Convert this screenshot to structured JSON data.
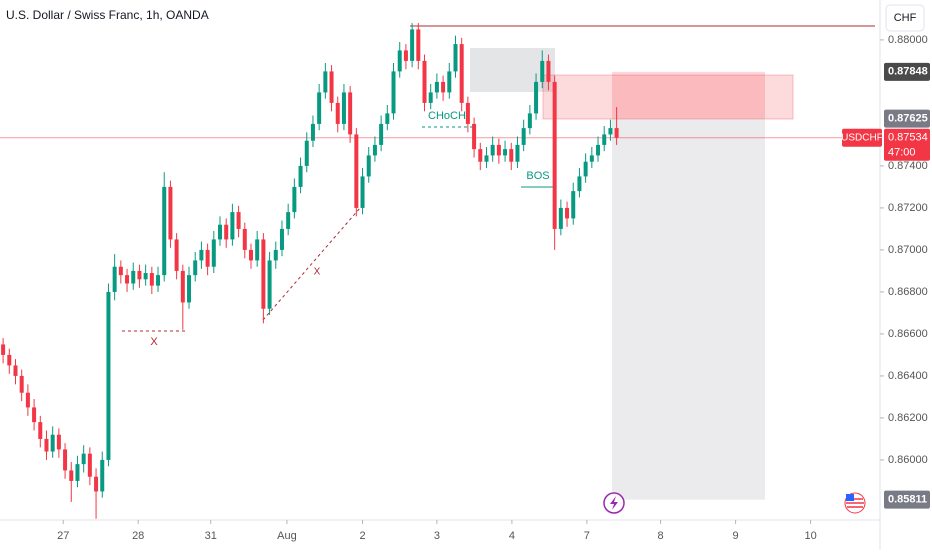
{
  "chart_data": {
    "type": "candlestick",
    "title": "U.S. Dollar / Swiss Franc, 1h, OANDA",
    "currency": "CHF",
    "symbol": "USDCHF",
    "countdown": "47:00",
    "last_price": 0.87534,
    "stop_price": 0.87848,
    "entry_price": 0.87625,
    "target_price": 0.85811,
    "annotations": [
      "CHoCH",
      "BOS",
      "X",
      "X"
    ],
    "up_color": "#089981",
    "down_color": "#f23645",
    "xlim": [
      0,
      142
    ],
    "xticks": [
      {
        "value": 10.2,
        "label": "27"
      },
      {
        "value": 22.3,
        "label": "28"
      },
      {
        "value": 34,
        "label": "31"
      },
      {
        "value": 46.3,
        "label": "Aug"
      },
      {
        "value": 58.5,
        "label": "2"
      },
      {
        "value": 70.5,
        "label": "3"
      },
      {
        "value": 82.6,
        "label": "4"
      },
      {
        "value": 94.7,
        "label": "7"
      },
      {
        "value": 106.6,
        "label": "8"
      },
      {
        "value": 118.7,
        "label": "9"
      },
      {
        "value": 130.8,
        "label": "10"
      }
    ],
    "ylim": [
      0.85714,
      0.8819
    ],
    "yticks": [
      {
        "value": 0.88,
        "label": "0.88000"
      },
      {
        "value": 0.874,
        "label": "0.87400"
      },
      {
        "value": 0.872,
        "label": "0.87200"
      },
      {
        "value": 0.87,
        "label": "0.87000"
      },
      {
        "value": 0.868,
        "label": "0.86800"
      },
      {
        "value": 0.866,
        "label": "0.86600"
      },
      {
        "value": 0.864,
        "label": "0.86400"
      },
      {
        "value": 0.862,
        "label": "0.86200"
      },
      {
        "value": 0.86,
        "label": "0.86000"
      }
    ],
    "candles": [
      [
        0.8655,
        0.8658,
        0.8646,
        0.865
      ],
      [
        0.865,
        0.8653,
        0.8641,
        0.8645
      ],
      [
        0.8645,
        0.8648,
        0.8636,
        0.864
      ],
      [
        0.864,
        0.8643,
        0.8628,
        0.8632
      ],
      [
        0.8632,
        0.8636,
        0.8621,
        0.8625
      ],
      [
        0.8625,
        0.8629,
        0.8614,
        0.8618
      ],
      [
        0.8618,
        0.8621,
        0.8606,
        0.861
      ],
      [
        0.861,
        0.8614,
        0.86,
        0.8604
      ],
      [
        0.8604,
        0.8616,
        0.8601,
        0.8612
      ],
      [
        0.8612,
        0.8615,
        0.8601,
        0.8605
      ],
      [
        0.8605,
        0.8608,
        0.8591,
        0.8595
      ],
      [
        0.8595,
        0.8599,
        0.858,
        0.859
      ],
      [
        0.859,
        0.8602,
        0.8587,
        0.8598
      ],
      [
        0.8598,
        0.8607,
        0.8594,
        0.8603
      ],
      [
        0.8603,
        0.8606,
        0.8588,
        0.8592
      ],
      [
        0.8592,
        0.8596,
        0.8572,
        0.8585
      ],
      [
        0.8585,
        0.8604,
        0.8582,
        0.86
      ],
      [
        0.86,
        0.8684,
        0.8597,
        0.868
      ],
      [
        0.868,
        0.8698,
        0.8676,
        0.8692
      ],
      [
        0.8692,
        0.8695,
        0.8684,
        0.8688
      ],
      [
        0.8688,
        0.8691,
        0.868,
        0.8684
      ],
      [
        0.8684,
        0.8694,
        0.8681,
        0.869
      ],
      [
        0.869,
        0.8693,
        0.8682,
        0.8686
      ],
      [
        0.8686,
        0.8693,
        0.8683,
        0.8689
      ],
      [
        0.8689,
        0.8692,
        0.8679,
        0.8683
      ],
      [
        0.8683,
        0.8692,
        0.868,
        0.8688
      ],
      [
        0.8688,
        0.8737,
        0.8685,
        0.873
      ],
      [
        0.873,
        0.8733,
        0.8701,
        0.8705
      ],
      [
        0.8705,
        0.8708,
        0.8686,
        0.869
      ],
      [
        0.869,
        0.8693,
        0.8662,
        0.8675
      ],
      [
        0.8675,
        0.8692,
        0.8672,
        0.8688
      ],
      [
        0.8688,
        0.8699,
        0.8685,
        0.8695
      ],
      [
        0.8695,
        0.8704,
        0.8691,
        0.87
      ],
      [
        0.87,
        0.8703,
        0.8688,
        0.8692
      ],
      [
        0.8692,
        0.8709,
        0.8689,
        0.8705
      ],
      [
        0.8705,
        0.8716,
        0.8702,
        0.8712
      ],
      [
        0.8712,
        0.8715,
        0.8701,
        0.8705
      ],
      [
        0.8705,
        0.8722,
        0.8702,
        0.8718
      ],
      [
        0.8718,
        0.8721,
        0.8706,
        0.871
      ],
      [
        0.871,
        0.8713,
        0.8696,
        0.87
      ],
      [
        0.87,
        0.8703,
        0.8691,
        0.8695
      ],
      [
        0.8695,
        0.8709,
        0.8692,
        0.8705
      ],
      [
        0.8705,
        0.8708,
        0.8665,
        0.8672
      ],
      [
        0.8672,
        0.8699,
        0.8669,
        0.8695
      ],
      [
        0.8695,
        0.8704,
        0.8691,
        0.87
      ],
      [
        0.87,
        0.8714,
        0.8697,
        0.871
      ],
      [
        0.871,
        0.8722,
        0.8707,
        0.8718
      ],
      [
        0.8718,
        0.8734,
        0.8715,
        0.873
      ],
      [
        0.873,
        0.8744,
        0.8727,
        0.874
      ],
      [
        0.874,
        0.8756,
        0.8737,
        0.8752
      ],
      [
        0.8752,
        0.8764,
        0.8749,
        0.876
      ],
      [
        0.876,
        0.8779,
        0.8757,
        0.8775
      ],
      [
        0.8775,
        0.8789,
        0.8772,
        0.8785
      ],
      [
        0.8785,
        0.8788,
        0.8766,
        0.877
      ],
      [
        0.877,
        0.8773,
        0.8756,
        0.876
      ],
      [
        0.876,
        0.8779,
        0.8757,
        0.8775
      ],
      [
        0.8775,
        0.8778,
        0.8751,
        0.8755
      ],
      [
        0.8755,
        0.8758,
        0.8716,
        0.872
      ],
      [
        0.872,
        0.8739,
        0.8717,
        0.8735
      ],
      [
        0.8735,
        0.8749,
        0.8732,
        0.8745
      ],
      [
        0.8745,
        0.8754,
        0.8742,
        0.875
      ],
      [
        0.875,
        0.8764,
        0.8747,
        0.876
      ],
      [
        0.876,
        0.8769,
        0.8757,
        0.8765
      ],
      [
        0.8765,
        0.8789,
        0.8762,
        0.8785
      ],
      [
        0.8785,
        0.8799,
        0.8782,
        0.8795
      ],
      [
        0.8795,
        0.8798,
        0.8786,
        0.879
      ],
      [
        0.879,
        0.8808,
        0.8787,
        0.8805
      ],
      [
        0.8805,
        0.8808,
        0.8786,
        0.879
      ],
      [
        0.879,
        0.8793,
        0.8766,
        0.877
      ],
      [
        0.877,
        0.8779,
        0.8767,
        0.8775
      ],
      [
        0.8775,
        0.8784,
        0.8772,
        0.878
      ],
      [
        0.878,
        0.8783,
        0.8771,
        0.8775
      ],
      [
        0.8775,
        0.8789,
        0.8772,
        0.8785
      ],
      [
        0.8785,
        0.8802,
        0.8782,
        0.8798
      ],
      [
        0.8798,
        0.8801,
        0.8766,
        0.877
      ],
      [
        0.877,
        0.8773,
        0.8756,
        0.876
      ],
      [
        0.876,
        0.8763,
        0.8744,
        0.8748
      ],
      [
        0.8748,
        0.8751,
        0.8738,
        0.8742
      ],
      [
        0.8742,
        0.8749,
        0.8739,
        0.8745
      ],
      [
        0.8745,
        0.8754,
        0.8742,
        0.875
      ],
      [
        0.875,
        0.8753,
        0.8741,
        0.8745
      ],
      [
        0.8745,
        0.8752,
        0.8742,
        0.8748
      ],
      [
        0.8748,
        0.8751,
        0.8738,
        0.8742
      ],
      [
        0.8742,
        0.8754,
        0.8739,
        0.875
      ],
      [
        0.875,
        0.8762,
        0.8747,
        0.8758
      ],
      [
        0.8758,
        0.8769,
        0.8755,
        0.8765
      ],
      [
        0.8765,
        0.8784,
        0.8762,
        0.878
      ],
      [
        0.878,
        0.8795,
        0.8777,
        0.879
      ],
      [
        0.879,
        0.8793,
        0.8776,
        0.878
      ],
      [
        0.878,
        0.8783,
        0.87,
        0.871
      ],
      [
        0.871,
        0.8724,
        0.8707,
        0.872
      ],
      [
        0.872,
        0.8723,
        0.8711,
        0.8715
      ],
      [
        0.8715,
        0.8732,
        0.8712,
        0.8728
      ],
      [
        0.8728,
        0.8739,
        0.8725,
        0.8735
      ],
      [
        0.8735,
        0.8746,
        0.8732,
        0.8742
      ],
      [
        0.8742,
        0.8749,
        0.8739,
        0.8745
      ],
      [
        0.8745,
        0.8754,
        0.8742,
        0.875
      ],
      [
        0.875,
        0.8759,
        0.8747,
        0.8755
      ],
      [
        0.8755,
        0.8762,
        0.8752,
        0.8758
      ],
      [
        0.8758,
        0.8768,
        0.875,
        0.87534
      ]
    ]
  }
}
